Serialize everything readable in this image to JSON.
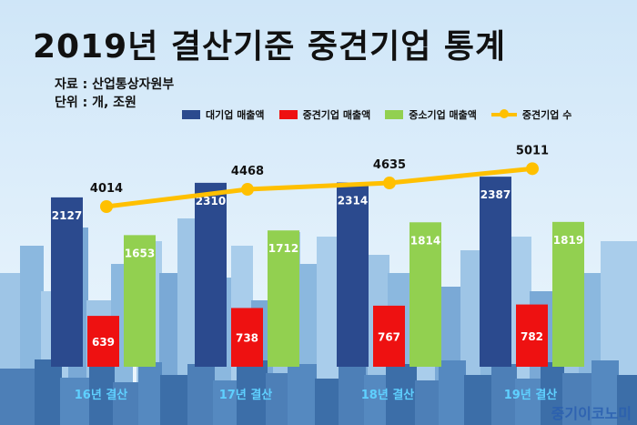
{
  "header": {
    "title": "2019년 결산기준 중견기업 통계",
    "source": "자료 : 산업통상자원부",
    "unit": "단위 : 개, 조원"
  },
  "legend": {
    "large": "대기업 매출액",
    "mid": "중견기업 매출액",
    "small": "중소기업 매출액",
    "count": "중견기업 수"
  },
  "watermark": "중기이코노미",
  "colors": {
    "large": "#2b4a8e",
    "mid": "#ee1111",
    "small": "#92d050",
    "count": "#ffc000",
    "sky_top": "#cfe6f8",
    "sky_bottom": "#eef7fd"
  },
  "chart_data": {
    "type": "bar",
    "categories": [
      "16년 결산",
      "17년 결산",
      "18년 결산",
      "19년 결산"
    ],
    "series": [
      {
        "name": "대기업 매출액",
        "values": [
          2127,
          2310,
          2314,
          2387
        ]
      },
      {
        "name": "중견기업 매출액",
        "values": [
          639,
          738,
          767,
          782
        ]
      },
      {
        "name": "중소기업 매출액",
        "values": [
          1653,
          1712,
          1814,
          1819
        ]
      },
      {
        "name": "중견기업 수",
        "type": "line",
        "values": [
          4014,
          4468,
          4635,
          5011
        ]
      }
    ],
    "title": "2019년 결산기준 중견기업 통계",
    "legend_position": "top"
  }
}
